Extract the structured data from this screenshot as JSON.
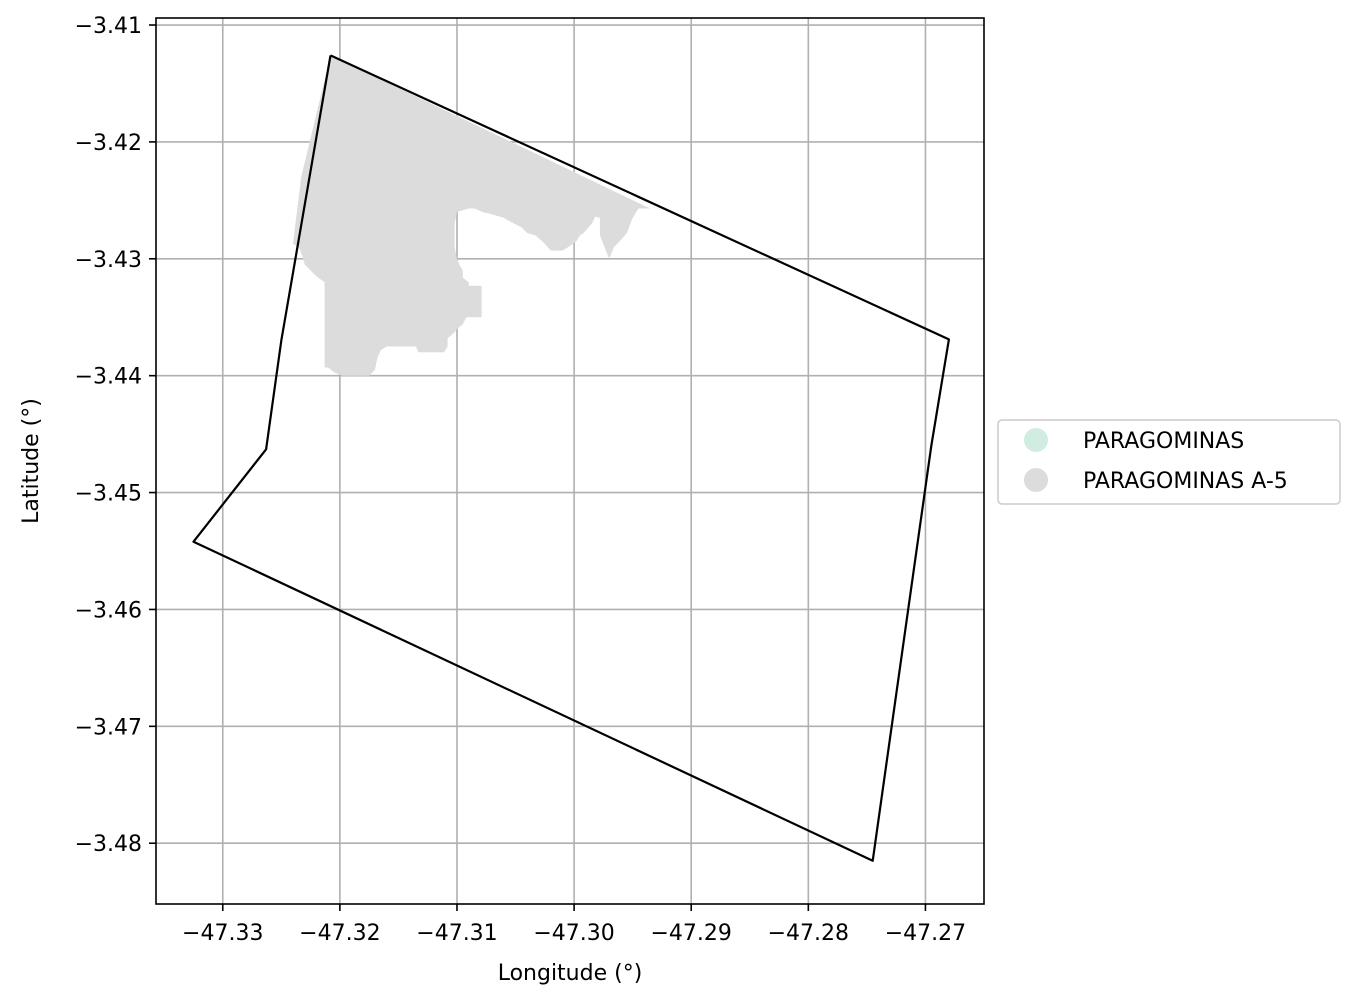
{
  "chart_data": {
    "type": "map",
    "xlabel": "Longitude (°)",
    "ylabel": "Latitude (°)",
    "xlim": [
      -47.3357,
      -47.265
    ],
    "ylim": [
      -3.4852,
      -3.4094
    ],
    "xticks": [
      -47.33,
      -47.32,
      -47.31,
      -47.3,
      -47.29,
      -47.28,
      -47.27
    ],
    "xtick_labels": [
      "−47.33",
      "−47.32",
      "−47.31",
      "−47.30",
      "−47.29",
      "−47.28",
      "−47.27"
    ],
    "yticks": [
      -3.41,
      -3.42,
      -3.43,
      -3.44,
      -3.45,
      -3.46,
      -3.47,
      -3.48
    ],
    "ytick_labels": [
      "−3.41",
      "−3.42",
      "−3.43",
      "−3.44",
      "−3.45",
      "−3.46",
      "−3.47",
      "−3.48"
    ],
    "grid": true,
    "legend_position": "outside-right",
    "legend": [
      {
        "label": "PARAGOMINAS",
        "color": "#d1ece0"
      },
      {
        "label": "PARAGOMINAS A-5",
        "color": "#dcdcdc"
      }
    ],
    "boundary": {
      "stroke": "#000000",
      "coordinates": [
        [
          -47.3208,
          -3.4126
        ],
        [
          -47.268,
          -3.4369
        ],
        [
          -47.2695,
          -3.446
        ],
        [
          -47.2745,
          -3.4815
        ],
        [
          -47.3325,
          -3.4542
        ],
        [
          -47.3263,
          -3.4463
        ],
        [
          -47.325,
          -3.437
        ],
        [
          -47.3208,
          -3.4126
        ]
      ]
    },
    "regions": [
      {
        "name": "PARAGOMINAS A-5",
        "color": "#dcdcdc",
        "coordinates": [
          [
            -47.3208,
            -3.4126
          ],
          [
            -47.2935,
            -3.4257
          ],
          [
            -47.2945,
            -3.4257
          ],
          [
            -47.295,
            -3.4265
          ],
          [
            -47.2955,
            -3.4278
          ],
          [
            -47.2962,
            -3.4286
          ],
          [
            -47.2966,
            -3.429
          ],
          [
            -47.297,
            -3.43
          ],
          [
            -47.2974,
            -3.429
          ],
          [
            -47.2978,
            -3.428
          ],
          [
            -47.2978,
            -3.4265
          ],
          [
            -47.2982,
            -3.4264
          ],
          [
            -47.2985,
            -3.427
          ],
          [
            -47.2992,
            -3.4278
          ],
          [
            -47.2995,
            -3.428
          ],
          [
            -47.2998,
            -3.4285
          ],
          [
            -47.3005,
            -3.429
          ],
          [
            -47.301,
            -3.4293
          ],
          [
            -47.302,
            -3.4293
          ],
          [
            -47.3025,
            -3.4287
          ],
          [
            -47.3033,
            -3.428
          ],
          [
            -47.304,
            -3.4278
          ],
          [
            -47.3045,
            -3.4273
          ],
          [
            -47.3055,
            -3.4268
          ],
          [
            -47.306,
            -3.4265
          ],
          [
            -47.307,
            -3.4262
          ],
          [
            -47.3078,
            -3.426
          ],
          [
            -47.3085,
            -3.4257
          ],
          [
            -47.309,
            -3.4257
          ],
          [
            -47.31,
            -3.426
          ],
          [
            -47.3102,
            -3.427
          ],
          [
            -47.3102,
            -3.429
          ],
          [
            -47.31,
            -3.43
          ],
          [
            -47.3098,
            -3.4305
          ],
          [
            -47.3095,
            -3.431
          ],
          [
            -47.3095,
            -3.4316
          ],
          [
            -47.309,
            -3.432
          ],
          [
            -47.309,
            -3.4323
          ],
          [
            -47.3079,
            -3.4323
          ],
          [
            -47.3079,
            -3.435
          ],
          [
            -47.3092,
            -3.435
          ],
          [
            -47.3095,
            -3.4356
          ],
          [
            -47.31,
            -3.436
          ],
          [
            -47.3102,
            -3.4363
          ],
          [
            -47.3108,
            -3.4368
          ],
          [
            -47.3108,
            -3.4375
          ],
          [
            -47.3111,
            -3.438
          ],
          [
            -47.3133,
            -3.438
          ],
          [
            -47.3135,
            -3.4375
          ],
          [
            -47.3145,
            -3.4375
          ],
          [
            -47.316,
            -3.4375
          ],
          [
            -47.3165,
            -3.4378
          ],
          [
            -47.3168,
            -3.4385
          ],
          [
            -47.317,
            -3.4395
          ],
          [
            -47.3175,
            -3.44
          ],
          [
            -47.319,
            -3.44
          ],
          [
            -47.3198,
            -3.44
          ],
          [
            -47.3205,
            -3.4397
          ],
          [
            -47.321,
            -3.4393
          ],
          [
            -47.3213,
            -3.4393
          ],
          [
            -47.3213,
            -3.435
          ],
          [
            -47.3213,
            -3.434
          ],
          [
            -47.3213,
            -3.432
          ],
          [
            -47.322,
            -3.4315
          ],
          [
            -47.3225,
            -3.431
          ],
          [
            -47.323,
            -3.4305
          ],
          [
            -47.3232,
            -3.4298
          ],
          [
            -47.3235,
            -3.429
          ],
          [
            -47.324,
            -3.4287
          ],
          [
            -47.3233,
            -3.423
          ],
          [
            -47.3208,
            -3.4126
          ]
        ]
      }
    ]
  }
}
